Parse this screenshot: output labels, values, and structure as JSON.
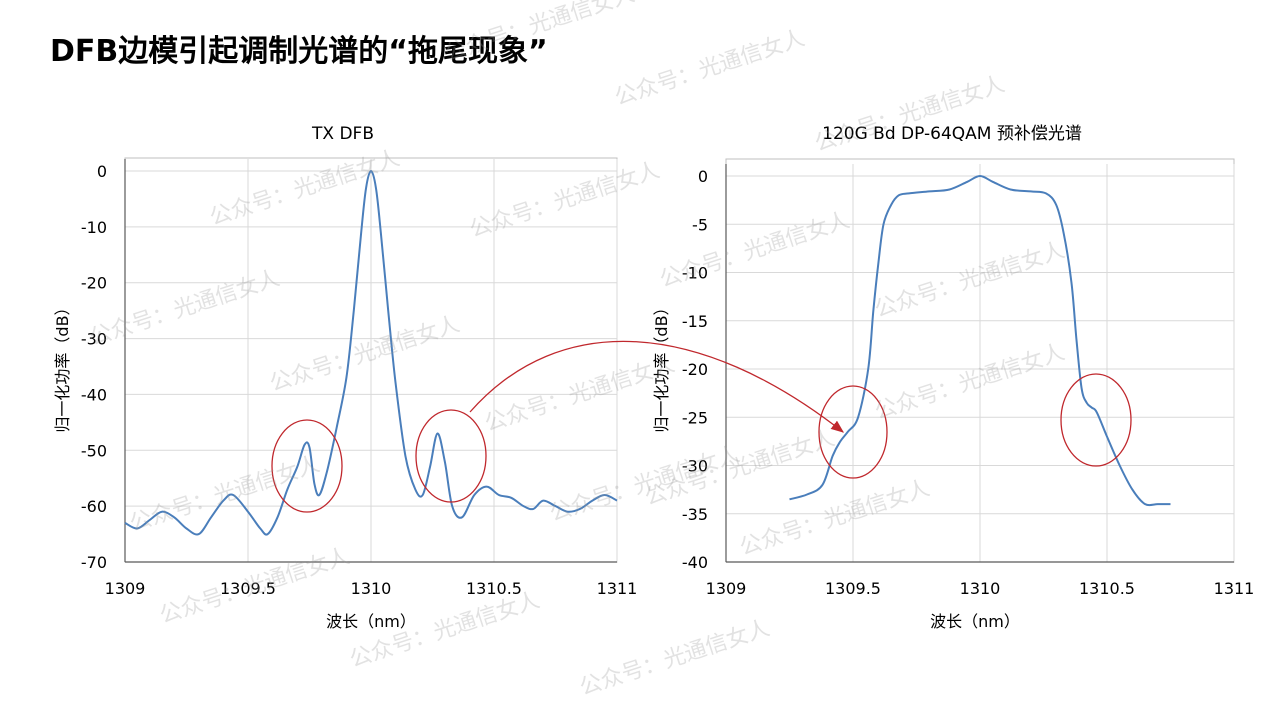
{
  "page": {
    "title": "DFB边模引起调制光谱的“拖尾现象”"
  },
  "watermark": {
    "text": "公众号：光通信女人"
  },
  "colors": {
    "line": "#4a7ebb",
    "annotation": "#c0282d",
    "grid": "#d9d9d9",
    "axis": "#595959"
  },
  "chart_data": [
    {
      "type": "line",
      "title": "TX DFB",
      "xlabel": "波长（nm）",
      "ylabel": "归一化功率（dB）",
      "xlim": [
        1309,
        1311
      ],
      "ylim": [
        -70,
        0
      ],
      "xticks": [
        1309,
        1309.5,
        1310,
        1310.5,
        1311
      ],
      "xtick_labels": [
        "1309",
        "1309.5",
        "1310",
        "1310.5",
        "1311"
      ],
      "yticks": [
        0,
        -10,
        -20,
        -30,
        -40,
        -50,
        -60,
        -70
      ],
      "ytick_labels": [
        "0",
        "-10",
        "-20",
        "-30",
        "-40",
        "-50",
        "-60",
        "-70"
      ],
      "grid": true,
      "series": [
        {
          "x": [
            1309,
            1309.05,
            1309.1,
            1309.15,
            1309.2,
            1309.25,
            1309.3,
            1309.35,
            1309.4,
            1309.44,
            1309.5,
            1309.55,
            1309.58,
            1309.62,
            1309.66,
            1309.7,
            1309.73,
            1309.75,
            1309.77,
            1309.79,
            1309.82,
            1309.86,
            1309.9,
            1309.93,
            1309.96,
            1309.98,
            1310,
            1310.02,
            1310.04,
            1310.07,
            1310.1,
            1310.14,
            1310.18,
            1310.21,
            1310.24,
            1310.27,
            1310.3,
            1310.33,
            1310.37,
            1310.42,
            1310.47,
            1310.52,
            1310.57,
            1310.62,
            1310.66,
            1310.7,
            1310.75,
            1310.8,
            1310.85,
            1310.9,
            1310.95,
            1311
          ],
          "y": [
            -63,
            -64,
            -62.5,
            -61,
            -62,
            -64,
            -65,
            -62,
            -59,
            -58,
            -61,
            -64,
            -65,
            -62,
            -57,
            -53,
            -49,
            -49.5,
            -56,
            -58,
            -54,
            -46,
            -37,
            -25,
            -11,
            -3,
            0,
            -3,
            -11,
            -25,
            -38,
            -51,
            -57,
            -58,
            -53,
            -47,
            -52,
            -60,
            -62,
            -58,
            -56.5,
            -58,
            -58.5,
            -60,
            -60.5,
            -59,
            -60,
            -61,
            -60.5,
            -59,
            -58,
            -59
          ]
        }
      ],
      "annotations": [
        "circle-left-sidemode",
        "circle-right-sidemode"
      ]
    },
    {
      "type": "line",
      "title": "120G Bd DP-64QAM 预补偿光谱",
      "xlabel": "波长（nm）",
      "ylabel": "归一化功率（dB）",
      "xlim": [
        1309,
        1311
      ],
      "ylim": [
        -40,
        0
      ],
      "xticks": [
        1309,
        1309.5,
        1310,
        1310.5,
        1311
      ],
      "xtick_labels": [
        "1309",
        "1309.5",
        "1310",
        "1310.5",
        "1311"
      ],
      "yticks": [
        0,
        -5,
        -10,
        -15,
        -20,
        -25,
        -30,
        -35,
        -40
      ],
      "ytick_labels": [
        "0",
        "-5",
        "-10",
        "-15",
        "-20",
        "-25",
        "-30",
        "-35",
        "-40"
      ],
      "grid": true,
      "series": [
        {
          "x": [
            1309.25,
            1309.32,
            1309.38,
            1309.42,
            1309.45,
            1309.48,
            1309.52,
            1309.56,
            1309.58,
            1309.6,
            1309.62,
            1309.65,
            1309.68,
            1309.72,
            1309.8,
            1309.88,
            1309.95,
            1310,
            1310.05,
            1310.12,
            1310.2,
            1310.26,
            1310.3,
            1310.33,
            1310.36,
            1310.38,
            1310.4,
            1310.42,
            1310.44,
            1310.46,
            1310.5,
            1310.55,
            1310.6,
            1310.65,
            1310.7,
            1310.75
          ],
          "y": [
            -33.5,
            -33,
            -32,
            -29,
            -27.5,
            -26.5,
            -25,
            -20,
            -14,
            -9,
            -5,
            -3,
            -2,
            -1.8,
            -1.6,
            -1.4,
            -0.6,
            0,
            -0.6,
            -1.4,
            -1.6,
            -1.8,
            -3,
            -6,
            -11,
            -17,
            -22,
            -23.5,
            -24,
            -24.5,
            -27,
            -30,
            -32.5,
            -34,
            -34,
            -34
          ]
        }
      ],
      "annotations": [
        "circle-left-tail",
        "circle-right-tail",
        "arrow-from-left-chart"
      ]
    }
  ]
}
